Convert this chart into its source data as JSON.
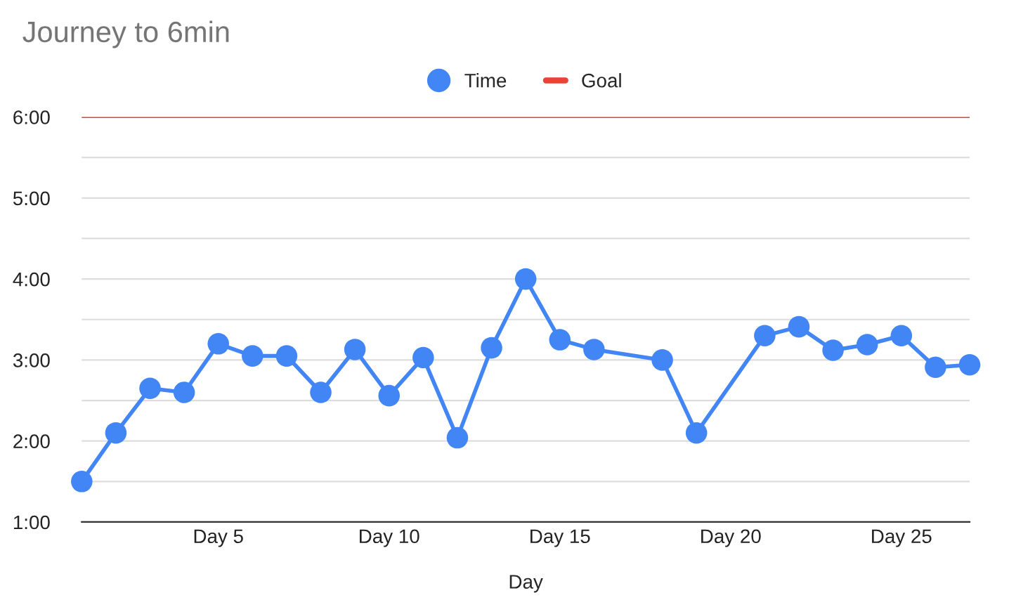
{
  "chart_data": {
    "type": "line",
    "title": "Journey to 6min",
    "xlabel": "Day",
    "categories": [
      null,
      null,
      null,
      null,
      "Day 5",
      null,
      null,
      null,
      null,
      "Day 10",
      null,
      null,
      null,
      null,
      "Day 15",
      null,
      null,
      null,
      null,
      "Day 20",
      null,
      null,
      null,
      null,
      "Day 25",
      null,
      null
    ],
    "series": [
      {
        "name": "Time",
        "color": "#4285f4",
        "values": [
          1.5,
          2.1,
          2.65,
          2.6,
          3.2,
          3.05,
          3.05,
          2.6,
          3.13,
          2.56,
          3.03,
          2.04,
          3.15,
          4.0,
          3.25,
          3.13,
          null,
          3.0,
          2.1,
          null,
          3.3,
          3.41,
          3.12,
          3.19,
          3.3,
          2.91,
          2.94
        ]
      }
    ],
    "ref_lines": [
      {
        "axis": "y",
        "value": 6,
        "label": "Goal",
        "color": "#ea4335"
      }
    ],
    "marker": "circle",
    "ylim": [
      1,
      6
    ],
    "yticks": [
      {
        "value": 1,
        "label": "1:00"
      },
      {
        "value": 1.5,
        "label": null
      },
      {
        "value": 2,
        "label": "2:00"
      },
      {
        "value": 2.5,
        "label": null
      },
      {
        "value": 3,
        "label": "3:00"
      },
      {
        "value": 3.5,
        "label": null
      },
      {
        "value": 4,
        "label": "4:00"
      },
      {
        "value": 4.5,
        "label": null
      },
      {
        "value": 5,
        "label": "5:00"
      },
      {
        "value": 5.5,
        "label": null
      },
      {
        "value": 6,
        "label": "6:00"
      }
    ],
    "grid": "y",
    "legend": "top"
  }
}
